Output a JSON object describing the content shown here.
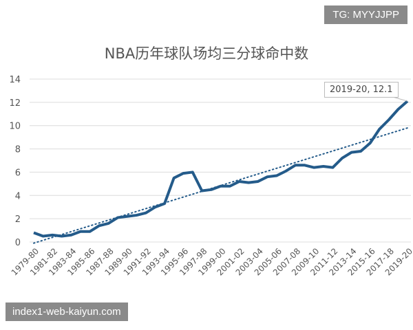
{
  "watermarks": {
    "top_right": "TG: MYYJJPP",
    "bottom_left": "index1-web-kaiyun.com"
  },
  "chart_data": {
    "type": "line",
    "title": "NBA历年球队场均三分球命中数",
    "xlabel": "",
    "ylabel": "",
    "ylim": [
      0,
      14
    ],
    "yticks": [
      0,
      2,
      4,
      6,
      8,
      10,
      12,
      14
    ],
    "grid": true,
    "line_color": "#245b8a",
    "categories": [
      "1979-80",
      "1980-81",
      "1981-82",
      "1982-83",
      "1983-84",
      "1984-85",
      "1985-86",
      "1986-87",
      "1987-88",
      "1988-89",
      "1989-90",
      "1990-91",
      "1991-92",
      "1992-93",
      "1993-94",
      "1994-95",
      "1995-96",
      "1996-97",
      "1997-98",
      "1998-99",
      "1999-00",
      "2000-01",
      "2001-02",
      "2002-03",
      "2003-04",
      "2004-05",
      "2005-06",
      "2006-07",
      "2007-08",
      "2008-09",
      "2009-10",
      "2010-11",
      "2011-12",
      "2012-13",
      "2013-14",
      "2014-15",
      "2015-16",
      "2016-17",
      "2017-18",
      "2018-19",
      "2019-20"
    ],
    "xtick_labels": [
      "1979-80",
      "1981-82",
      "1983-84",
      "1985-86",
      "1987-88",
      "1989-90",
      "1991-92",
      "1993-94",
      "1995-96",
      "1997-98",
      "1999-00",
      "2001-02",
      "2003-04",
      "2005-06",
      "2007-08",
      "2009-10",
      "2011-12",
      "2013-14",
      "2015-16",
      "2017-18",
      "2019-20"
    ],
    "series": [
      {
        "values": [
          0.8,
          0.5,
          0.6,
          0.5,
          0.6,
          0.9,
          0.9,
          1.4,
          1.6,
          2.1,
          2.2,
          2.3,
          2.5,
          3.0,
          3.3,
          5.5,
          5.9,
          6.0,
          4.4,
          4.5,
          4.8,
          4.8,
          5.2,
          5.1,
          5.2,
          5.6,
          5.7,
          6.1,
          6.6,
          6.6,
          6.4,
          6.5,
          6.4,
          7.2,
          7.7,
          7.8,
          8.5,
          9.7,
          10.5,
          11.4,
          12.1
        ]
      }
    ],
    "trendline": {
      "type": "linear",
      "style": "dotted",
      "start": -0.1,
      "end": 9.8
    },
    "annotation": "2019-20, 12.1"
  }
}
